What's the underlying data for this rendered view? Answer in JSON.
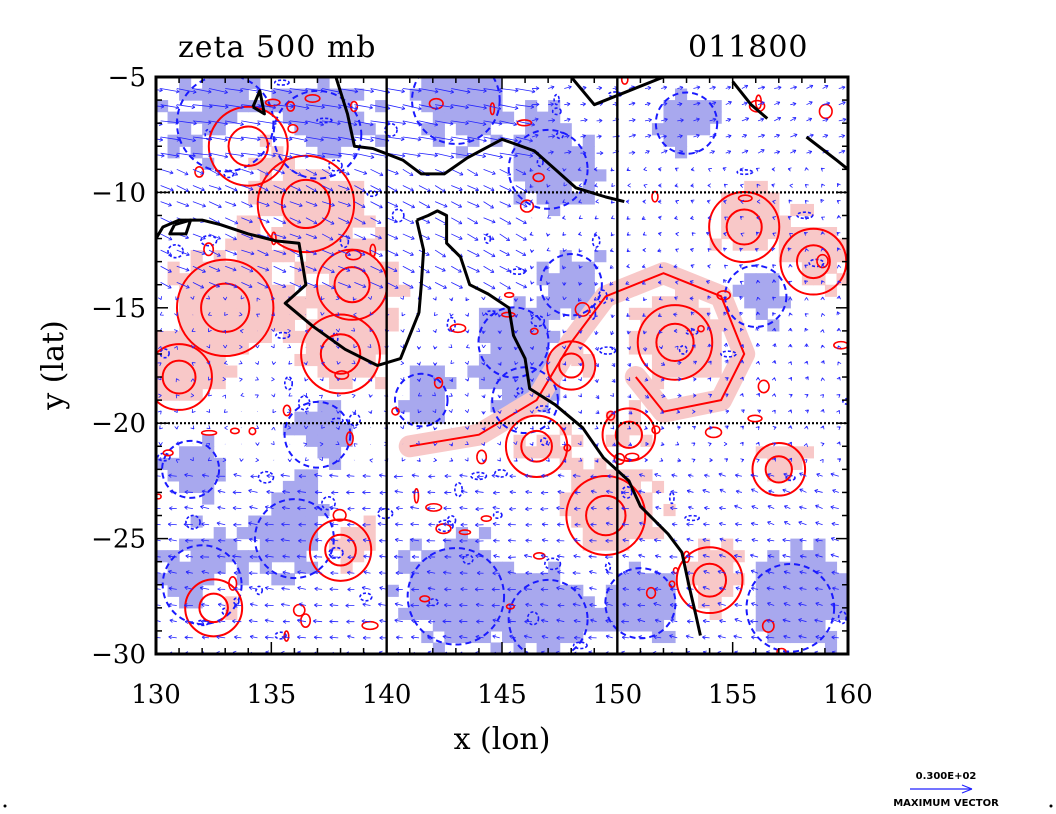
{
  "chart_data": {
    "type": "contour",
    "title": "zeta 500 mb",
    "timestamp": "011800",
    "xlabel": "x (lon)",
    "ylabel": "y (lat)",
    "xlim": [
      130,
      160
    ],
    "ylim": [
      -30,
      -5
    ],
    "xticks": [
      130,
      135,
      140,
      145,
      150,
      155,
      160
    ],
    "yticks": [
      -5,
      -10,
      -15,
      -20,
      -25,
      -30
    ],
    "xtick_labels": [
      "130",
      "135",
      "140",
      "145",
      "150",
      "155",
      "160"
    ],
    "ytick_labels": [
      "−5",
      "−10",
      "−15",
      "−20",
      "−25",
      "−30"
    ],
    "grid_x": [
      140,
      150
    ],
    "grid_y": [
      -10,
      -20
    ],
    "positive_color": "#ff0000",
    "positive_fill": "#f8c8c8",
    "negative_color": "#1a1aff",
    "negative_fill": "#a8a8ee",
    "coast_color": "#000000",
    "vector_color": "#2222ff",
    "legend": {
      "value_label": "0.300E+02",
      "caption": "MAXIMUM VECTOR"
    }
  }
}
